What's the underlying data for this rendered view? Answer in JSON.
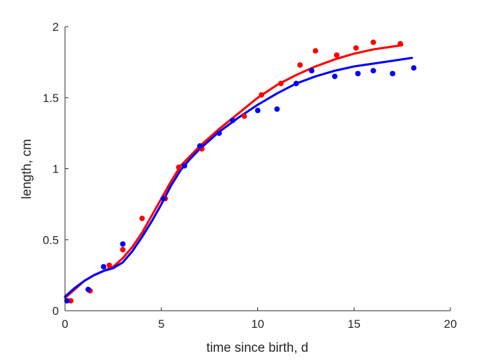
{
  "chart_data": {
    "type": "scatter",
    "title": "",
    "xlabel": "time since birth, d",
    "ylabel": "length, cm",
    "xlim": [
      0,
      20
    ],
    "ylim": [
      0,
      2
    ],
    "xticks": [
      0,
      5,
      10,
      15,
      20
    ],
    "xtick_labels": [
      "0",
      "5",
      "10",
      "15",
      "20"
    ],
    "yticks": [
      0,
      0.5,
      1,
      1.5,
      2
    ],
    "ytick_labels": [
      "0",
      "0.5",
      "1",
      "1.5",
      "2"
    ],
    "grid": false,
    "legend": "none",
    "series": [
      {
        "color": "#ff0000",
        "points": [
          {
            "x": 0.3,
            "y": 0.07
          },
          {
            "x": 1.3,
            "y": 0.14
          },
          {
            "x": 2.3,
            "y": 0.32
          },
          {
            "x": 3.0,
            "y": 0.43
          },
          {
            "x": 4.0,
            "y": 0.65
          },
          {
            "x": 5.2,
            "y": 0.79
          },
          {
            "x": 5.9,
            "y": 1.01
          },
          {
            "x": 7.1,
            "y": 1.14
          },
          {
            "x": 8.0,
            "y": 1.25
          },
          {
            "x": 9.3,
            "y": 1.37
          },
          {
            "x": 10.2,
            "y": 1.52
          },
          {
            "x": 11.2,
            "y": 1.6
          },
          {
            "x": 12.2,
            "y": 1.73
          },
          {
            "x": 13.0,
            "y": 1.83
          },
          {
            "x": 14.1,
            "y": 1.8
          },
          {
            "x": 15.1,
            "y": 1.85
          },
          {
            "x": 16.0,
            "y": 1.89
          },
          {
            "x": 17.4,
            "y": 1.88
          }
        ],
        "fit": [
          {
            "x": 0.0,
            "y": 0.09
          },
          {
            "x": 0.5,
            "y": 0.15
          },
          {
            "x": 1.0,
            "y": 0.21
          },
          {
            "x": 1.5,
            "y": 0.25
          },
          {
            "x": 2.0,
            "y": 0.28
          },
          {
            "x": 2.5,
            "y": 0.31
          },
          {
            "x": 3.0,
            "y": 0.37
          },
          {
            "x": 3.5,
            "y": 0.45
          },
          {
            "x": 4.0,
            "y": 0.55
          },
          {
            "x": 4.5,
            "y": 0.67
          },
          {
            "x": 5.0,
            "y": 0.79
          },
          {
            "x": 5.5,
            "y": 0.91
          },
          {
            "x": 6.0,
            "y": 1.02
          },
          {
            "x": 6.5,
            "y": 1.09
          },
          {
            "x": 7.0,
            "y": 1.16
          },
          {
            "x": 8.0,
            "y": 1.28
          },
          {
            "x": 9.0,
            "y": 1.39
          },
          {
            "x": 10.0,
            "y": 1.5
          },
          {
            "x": 11.0,
            "y": 1.59
          },
          {
            "x": 12.0,
            "y": 1.66
          },
          {
            "x": 13.0,
            "y": 1.72
          },
          {
            "x": 14.0,
            "y": 1.77
          },
          {
            "x": 15.0,
            "y": 1.81
          },
          {
            "x": 16.0,
            "y": 1.84
          },
          {
            "x": 17.0,
            "y": 1.86
          },
          {
            "x": 17.5,
            "y": 1.87
          }
        ]
      },
      {
        "color": "#0000ff",
        "points": [
          {
            "x": 0.1,
            "y": 0.07
          },
          {
            "x": 1.2,
            "y": 0.15
          },
          {
            "x": 2.0,
            "y": 0.31
          },
          {
            "x": 3.0,
            "y": 0.47
          },
          {
            "x": 5.1,
            "y": 0.79
          },
          {
            "x": 6.2,
            "y": 1.02
          },
          {
            "x": 7.0,
            "y": 1.16
          },
          {
            "x": 8.0,
            "y": 1.25
          },
          {
            "x": 8.7,
            "y": 1.34
          },
          {
            "x": 10.0,
            "y": 1.41
          },
          {
            "x": 11.0,
            "y": 1.42
          },
          {
            "x": 12.0,
            "y": 1.6
          },
          {
            "x": 12.8,
            "y": 1.69
          },
          {
            "x": 14.0,
            "y": 1.65
          },
          {
            "x": 15.2,
            "y": 1.67
          },
          {
            "x": 16.0,
            "y": 1.69
          },
          {
            "x": 17.0,
            "y": 1.67
          },
          {
            "x": 18.1,
            "y": 1.71
          }
        ],
        "fit": [
          {
            "x": 0.0,
            "y": 0.1
          },
          {
            "x": 0.5,
            "y": 0.16
          },
          {
            "x": 1.0,
            "y": 0.21
          },
          {
            "x": 1.5,
            "y": 0.25
          },
          {
            "x": 2.0,
            "y": 0.28
          },
          {
            "x": 2.5,
            "y": 0.3
          },
          {
            "x": 3.0,
            "y": 0.34
          },
          {
            "x": 3.5,
            "y": 0.42
          },
          {
            "x": 4.0,
            "y": 0.52
          },
          {
            "x": 4.5,
            "y": 0.63
          },
          {
            "x": 5.0,
            "y": 0.75
          },
          {
            "x": 5.5,
            "y": 0.88
          },
          {
            "x": 6.0,
            "y": 0.99
          },
          {
            "x": 6.5,
            "y": 1.07
          },
          {
            "x": 7.0,
            "y": 1.14
          },
          {
            "x": 8.0,
            "y": 1.26
          },
          {
            "x": 9.0,
            "y": 1.36
          },
          {
            "x": 10.0,
            "y": 1.45
          },
          {
            "x": 11.0,
            "y": 1.53
          },
          {
            "x": 12.0,
            "y": 1.6
          },
          {
            "x": 13.0,
            "y": 1.65
          },
          {
            "x": 14.0,
            "y": 1.69
          },
          {
            "x": 15.0,
            "y": 1.72
          },
          {
            "x": 16.0,
            "y": 1.74
          },
          {
            "x": 17.0,
            "y": 1.76
          },
          {
            "x": 18.0,
            "y": 1.78
          }
        ]
      }
    ]
  }
}
